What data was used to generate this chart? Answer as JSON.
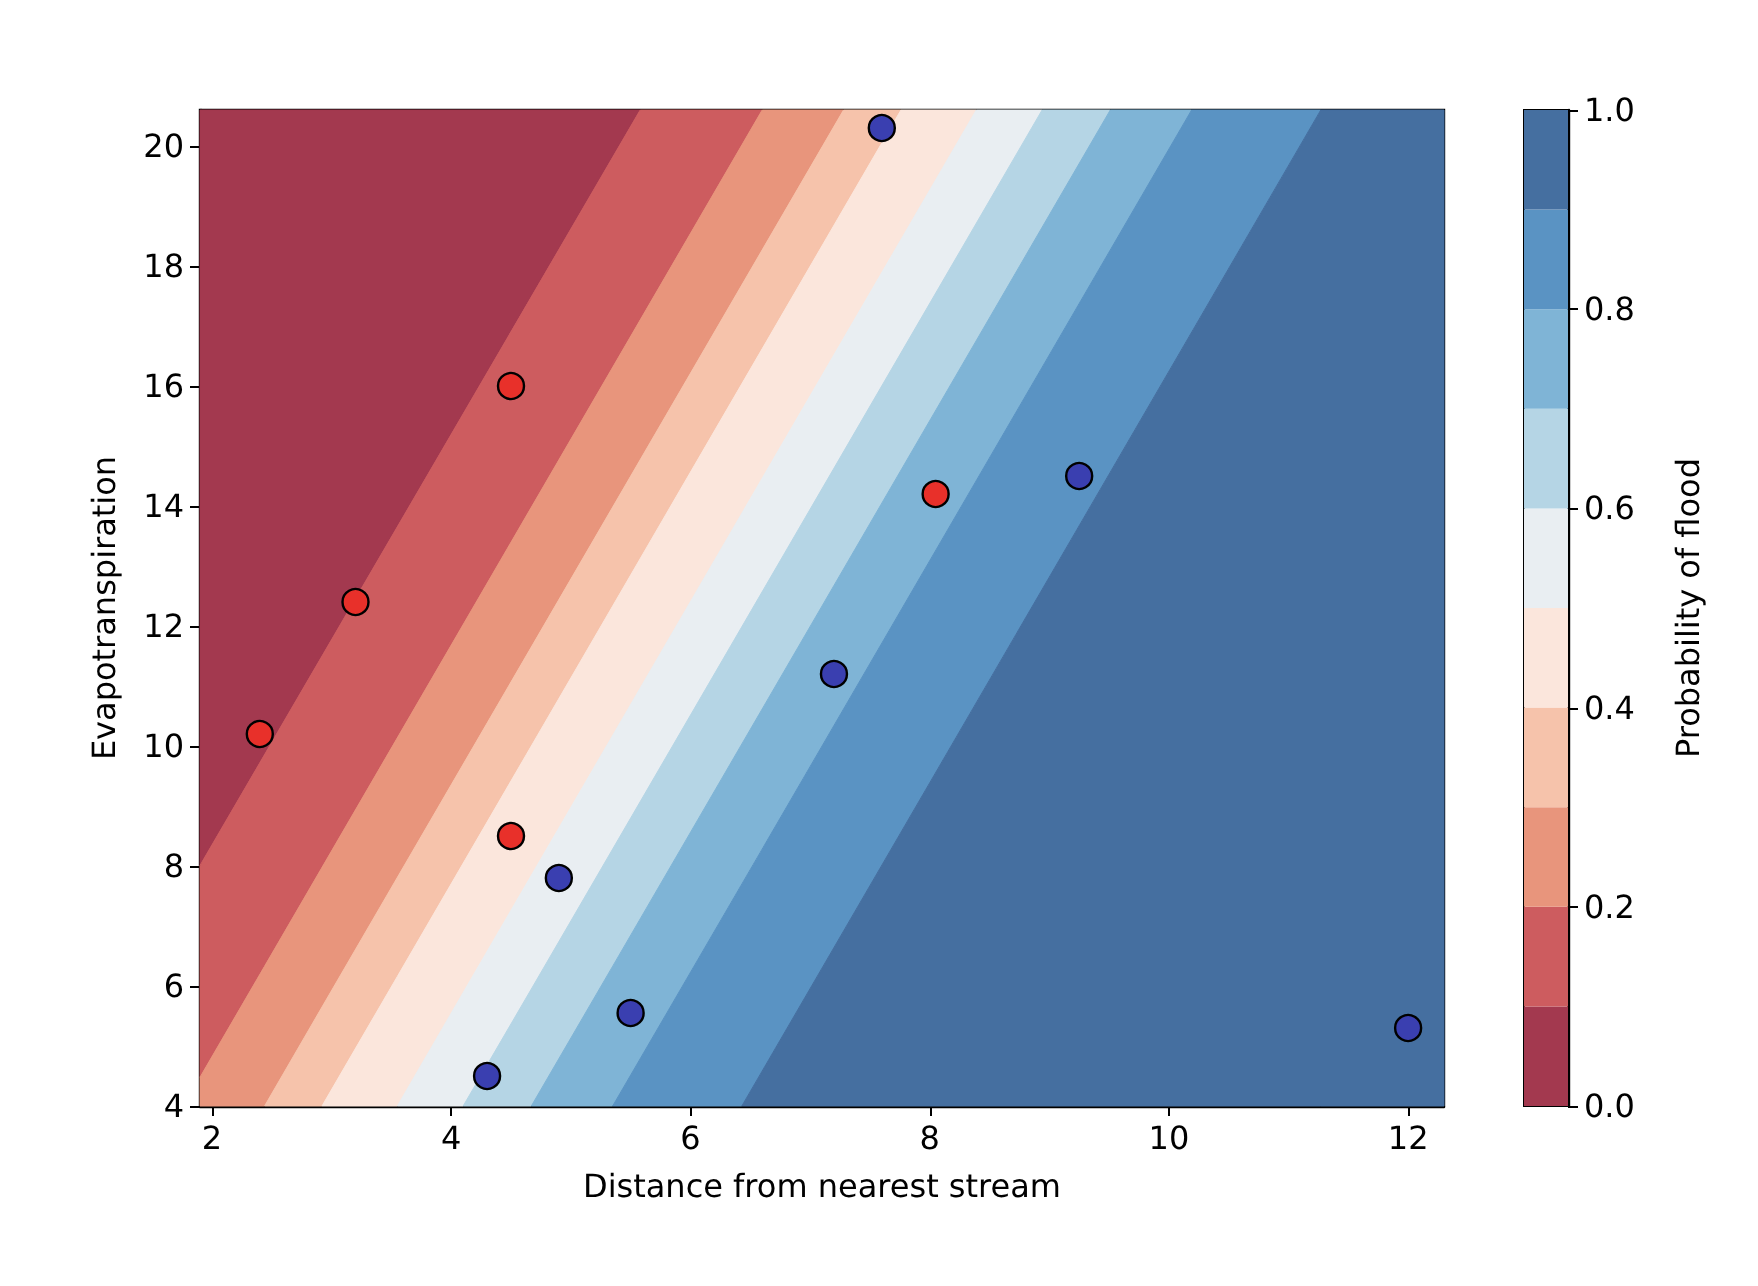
{
  "chart_data": {
    "type": "scatter",
    "xlabel": "Distance from nearest stream",
    "ylabel": "Evapotranspiration",
    "clabel": "Probability of flood",
    "xlim": [
      1.9,
      12.3
    ],
    "ylim": [
      4,
      20.6
    ],
    "xticks": [
      2,
      4,
      6,
      8,
      10,
      12
    ],
    "yticks": [
      4,
      6,
      8,
      10,
      12,
      14,
      16,
      18,
      20
    ],
    "clim": [
      0,
      1
    ],
    "cticks": [
      {
        "value": 0,
        "label": "0.0"
      },
      {
        "value": 0.2,
        "label": "0.2"
      },
      {
        "value": 0.4,
        "label": "0.4"
      },
      {
        "value": 0.6,
        "label": "0.6"
      },
      {
        "value": 0.8,
        "label": "0.8"
      },
      {
        "value": 1,
        "label": "1.0"
      }
    ],
    "series": [
      {
        "type": "area",
        "color": "#a3394f",
        "x": [
          1.9,
          5.58
        ],
        "values": [
          null,
          null
        ],
        "upper": [
          20.6,
          20.6
        ],
        "lower": [
          8.01,
          20.6
        ]
      },
      {
        "type": "area",
        "color": "#cd5c5f",
        "x": [
          1.9,
          5.58,
          6.6
        ],
        "values": [
          null,
          null,
          null
        ],
        "upper": [
          8.01,
          20.6,
          20.6
        ],
        "lower": [
          4.48,
          17.1,
          20.6
        ]
      },
      {
        "type": "area",
        "color": "#e8957c",
        "x": [
          1.9,
          2.44,
          6.6,
          7.28
        ],
        "values": [
          null,
          null,
          null,
          null
        ],
        "upper": [
          4.48,
          6.33,
          20.6,
          20.6
        ],
        "lower": [
          4,
          4,
          18.27,
          20.6
        ]
      },
      {
        "type": "area",
        "color": "#f6c3ab",
        "x": [
          2.44,
          2.92,
          7.28,
          7.76
        ],
        "values": [
          null,
          null,
          null,
          null
        ],
        "upper": [
          4,
          5.65,
          20.6,
          20.6
        ],
        "lower": [
          4,
          4,
          18.95,
          20.6
        ]
      },
      {
        "type": "area",
        "color": "#fbe6dc",
        "x": [
          2.92,
          3.55,
          7.76,
          8.39
        ],
        "values": [
          null,
          null,
          null,
          null
        ],
        "upper": [
          4,
          6.16,
          20.6,
          20.6
        ],
        "lower": [
          4,
          4,
          18.44,
          20.6
        ]
      },
      {
        "type": "area",
        "color": "#e9eef2",
        "x": [
          3.55,
          4.1,
          8.39,
          8.94
        ],
        "values": [
          null,
          null,
          null,
          null
        ],
        "upper": [
          4,
          5.89,
          20.6,
          20.6
        ],
        "lower": [
          4,
          4,
          18.71,
          20.6
        ]
      },
      {
        "type": "area",
        "color": "#b5d5e5",
        "x": [
          4.1,
          4.67,
          8.94,
          9.51
        ],
        "values": [
          null,
          null,
          null,
          null
        ],
        "upper": [
          4,
          5.95,
          20.6,
          20.6
        ],
        "lower": [
          4,
          4,
          18.65,
          20.6
        ]
      },
      {
        "type": "area",
        "color": "#7fb4d6",
        "x": [
          4.67,
          5.35,
          9.51,
          10.19
        ],
        "values": [
          null,
          null,
          null,
          null
        ],
        "upper": [
          4,
          6.33,
          20.6,
          20.6
        ],
        "lower": [
          4,
          4,
          18.27,
          20.6
        ]
      },
      {
        "type": "area",
        "color": "#5a93c3",
        "x": [
          5.35,
          6.43,
          10.19,
          11.27
        ],
        "values": [
          null,
          null,
          null,
          null
        ],
        "upper": [
          4,
          7.7,
          20.6,
          20.6
        ],
        "lower": [
          4,
          4,
          16.9,
          20.6
        ]
      },
      {
        "type": "area",
        "color": "#456fa0",
        "x": [
          6.43,
          11.27,
          12.3
        ],
        "values": [
          null,
          null,
          null
        ],
        "upper": [
          4,
          20.6,
          20.6
        ],
        "lower": [
          4,
          4,
          4
        ]
      },
      {
        "type": "scatter",
        "color": "#e8302a",
        "x": [
          4.5,
          3.2,
          2.4,
          4.5,
          8.05
        ],
        "values": [
          16.0,
          12.4,
          10.2,
          8.5,
          14.2
        ]
      },
      {
        "type": "scatter",
        "color": "#3a3fb0",
        "x": [
          4.9,
          5.5,
          4.3,
          9.25,
          7.2,
          12.0,
          7.6
        ],
        "values": [
          7.8,
          5.55,
          4.5,
          14.5,
          11.2,
          5.3,
          20.3
        ]
      }
    ]
  }
}
